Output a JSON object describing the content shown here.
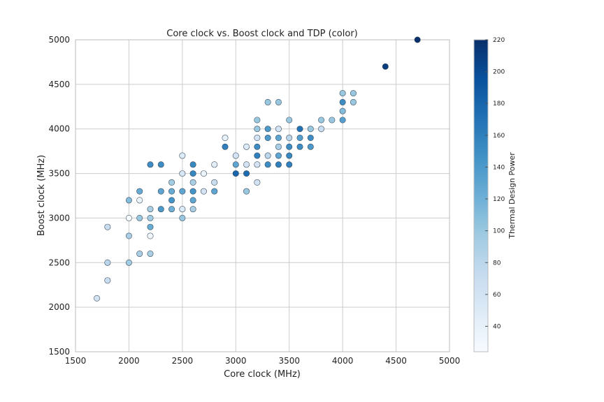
{
  "chart_data": {
    "type": "scatter",
    "title": "Core clock vs. Boost clock and TDP (color)",
    "xlabel": "Core clock (MHz)",
    "ylabel": "Boost clock (MHz)",
    "xlim": [
      1500,
      5000
    ],
    "ylim": [
      1500,
      5000
    ],
    "xticks": [
      1500,
      2000,
      2500,
      3000,
      3500,
      4000,
      4500,
      5000
    ],
    "yticks": [
      1500,
      2000,
      2500,
      3000,
      3500,
      4000,
      4500,
      5000
    ],
    "grid": true,
    "colormap": "Blues",
    "colorbar": {
      "label": "Thermal Design Power",
      "range": [
        24,
        220
      ],
      "ticks": [
        40,
        60,
        80,
        100,
        120,
        140,
        160,
        180,
        200,
        220
      ]
    },
    "points_format": [
      "core_clock",
      "boost_clock",
      "tdp"
    ],
    "points": [
      [
        1700,
        2100,
        60
      ],
      [
        1800,
        2300,
        70
      ],
      [
        1800,
        2500,
        80
      ],
      [
        2000,
        2500,
        95
      ],
      [
        2100,
        2600,
        90
      ],
      [
        2200,
        2600,
        90
      ],
      [
        2000,
        2800,
        90
      ],
      [
        2200,
        2800,
        30
      ],
      [
        1800,
        2900,
        70
      ],
      [
        2200,
        2900,
        125
      ],
      [
        2000,
        3000,
        25
      ],
      [
        2100,
        3000,
        100
      ],
      [
        2200,
        3000,
        95
      ],
      [
        2500,
        3000,
        100
      ],
      [
        2200,
        3100,
        90
      ],
      [
        2300,
        3100,
        140
      ],
      [
        2400,
        3100,
        120
      ],
      [
        2500,
        3100,
        50
      ],
      [
        2600,
        3100,
        90
      ],
      [
        2000,
        3200,
        110
      ],
      [
        2100,
        3200,
        35
      ],
      [
        2400,
        3200,
        145
      ],
      [
        2600,
        3200,
        130
      ],
      [
        2100,
        3300,
        125
      ],
      [
        2300,
        3300,
        130
      ],
      [
        2400,
        3300,
        125
      ],
      [
        2500,
        3300,
        130
      ],
      [
        2600,
        3300,
        145
      ],
      [
        2700,
        3300,
        60
      ],
      [
        2800,
        3300,
        130
      ],
      [
        3100,
        3300,
        100
      ],
      [
        2400,
        3400,
        95
      ],
      [
        2600,
        3400,
        90
      ],
      [
        2800,
        3400,
        70
      ],
      [
        3200,
        3400,
        60
      ],
      [
        2500,
        3500,
        55
      ],
      [
        2600,
        3500,
        155
      ],
      [
        2700,
        3500,
        35
      ],
      [
        3000,
        3500,
        180
      ],
      [
        3100,
        3500,
        175
      ],
      [
        2200,
        3600,
        150
      ],
      [
        2300,
        3600,
        150
      ],
      [
        2600,
        3600,
        155
      ],
      [
        2800,
        3600,
        45
      ],
      [
        3000,
        3600,
        130
      ],
      [
        3100,
        3600,
        60
      ],
      [
        3200,
        3600,
        60
      ],
      [
        3300,
        3600,
        150
      ],
      [
        3400,
        3600,
        160
      ],
      [
        3500,
        3600,
        160
      ],
      [
        2500,
        3700,
        50
      ],
      [
        3000,
        3700,
        60
      ],
      [
        3200,
        3700,
        160
      ],
      [
        3300,
        3700,
        80
      ],
      [
        3400,
        3700,
        130
      ],
      [
        3500,
        3700,
        155
      ],
      [
        2900,
        3800,
        160
      ],
      [
        3100,
        3800,
        50
      ],
      [
        3200,
        3800,
        150
      ],
      [
        3400,
        3800,
        90
      ],
      [
        3500,
        3800,
        150
      ],
      [
        3600,
        3800,
        150
      ],
      [
        3700,
        3800,
        140
      ],
      [
        2900,
        3900,
        40
      ],
      [
        3200,
        3900,
        60
      ],
      [
        3300,
        3900,
        140
      ],
      [
        3400,
        3900,
        130
      ],
      [
        3500,
        3900,
        80
      ],
      [
        3600,
        3900,
        135
      ],
      [
        3700,
        3900,
        150
      ],
      [
        3200,
        4000,
        100
      ],
      [
        3300,
        4000,
        140
      ],
      [
        3400,
        4000,
        60
      ],
      [
        3600,
        4000,
        170
      ],
      [
        3700,
        4000,
        100
      ],
      [
        3800,
        4000,
        70
      ],
      [
        3200,
        4100,
        100
      ],
      [
        3500,
        4100,
        100
      ],
      [
        3800,
        4100,
        100
      ],
      [
        3900,
        4100,
        100
      ],
      [
        4000,
        4100,
        135
      ],
      [
        4000,
        4200,
        110
      ],
      [
        3300,
        4300,
        100
      ],
      [
        3400,
        4300,
        100
      ],
      [
        4000,
        4300,
        150
      ],
      [
        4100,
        4300,
        100
      ],
      [
        4000,
        4400,
        100
      ],
      [
        4100,
        4400,
        100
      ],
      [
        4400,
        4700,
        210
      ],
      [
        4700,
        5000,
        220
      ]
    ]
  }
}
